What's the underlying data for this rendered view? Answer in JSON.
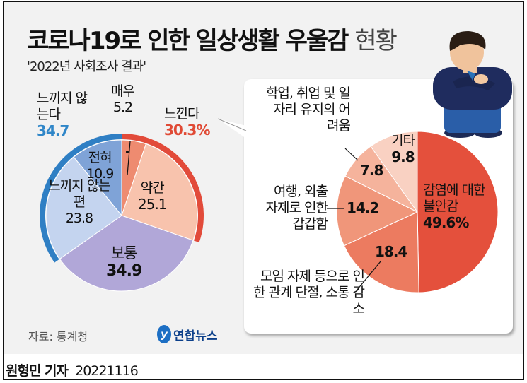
{
  "title": {
    "bold": "코로나19로 인한 일상생활 우울감",
    "light": "현황"
  },
  "subtitle": "'2022년 사회조사 결과'",
  "source": "자료: 통계청",
  "logo": {
    "text": "연합뉴스",
    "mark": "y"
  },
  "credit": {
    "reporter": "원형민 기자",
    "date": "20221116"
  },
  "chart_data": [
    {
      "type": "pie",
      "slices": [
        {
          "label": "매우",
          "value": 5.2,
          "color": "#ee8b70"
        },
        {
          "label": "약간",
          "value": 25.1,
          "color": "#f8c3ad"
        },
        {
          "label": "보통",
          "value": 34.9,
          "color": "#b1a7d8"
        },
        {
          "label": "느끼지 않는 편",
          "value": 23.8,
          "color": "#c4d4ef"
        },
        {
          "label": "전혀",
          "value": 10.9,
          "color": "#7fa3d7"
        }
      ],
      "groups": [
        {
          "label": "느낀다",
          "value": "30.3%",
          "members": [
            "매우",
            "약간"
          ],
          "color": "#e24b3a"
        },
        {
          "label": "느끼지 않는다",
          "value": "34.7",
          "members": [
            "느끼지 않는 편",
            "전혀"
          ],
          "color": "#2f7fc4"
        }
      ]
    },
    {
      "type": "pie",
      "slices": [
        {
          "label": "감염에 대한 불안감",
          "value": 49.6,
          "display": "49.6%",
          "color": "#e4503c"
        },
        {
          "label": "모임 자제 등으로 인한 관계 단절, 소통 감소",
          "value": 18.4,
          "display": "18.4",
          "color": "#ec7b60"
        },
        {
          "label": "여행, 외출 자제로 인한 갑갑함",
          "value": 14.2,
          "display": "14.2",
          "color": "#f0967a"
        },
        {
          "label": "학업, 취업 및 일자리 유지의 어려움",
          "value": 7.8,
          "display": "7.8",
          "color": "#f5b39c"
        },
        {
          "label": "기타",
          "value": 9.8,
          "display": "9.8",
          "color": "#f9d1c2"
        }
      ]
    }
  ]
}
